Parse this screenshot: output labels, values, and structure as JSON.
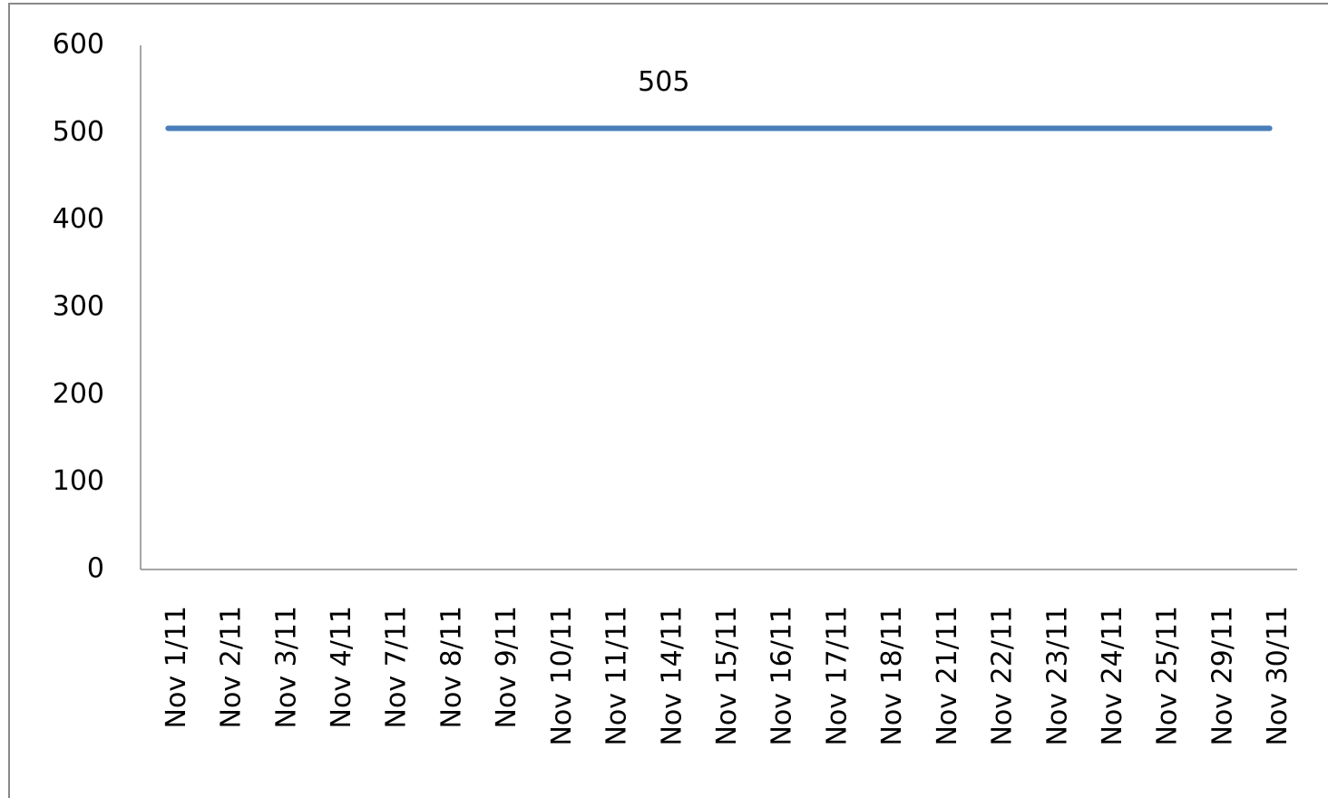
{
  "chart_data": {
    "type": "line",
    "categories": [
      "Nov 1/11",
      "Nov 2/11",
      "Nov 3/11",
      "Nov 4/11",
      "Nov 7/11",
      "Nov 8/11",
      "Nov 9/11",
      "Nov 10/11",
      "Nov 11/11",
      "Nov 14/11",
      "Nov 15/11",
      "Nov 16/11",
      "Nov 17/11",
      "Nov 18/11",
      "Nov 21/11",
      "Nov 22/11",
      "Nov 23/11",
      "Nov 24/11",
      "Nov 25/11",
      "Nov 29/11",
      "Nov 30/11"
    ],
    "series": [
      {
        "color": "#4a7ebb",
        "values": [
          505,
          505,
          505,
          505,
          505,
          505,
          505,
          505,
          505,
          505,
          505,
          505,
          505,
          505,
          505,
          505,
          505,
          505,
          505,
          505,
          505
        ],
        "value_labels": [
          null,
          null,
          null,
          null,
          null,
          null,
          null,
          null,
          null,
          "505",
          null,
          null,
          null,
          null,
          null,
          null,
          null,
          null,
          null,
          null,
          null
        ]
      }
    ],
    "ylim": [
      0,
      600
    ],
    "yticks": [
      0,
      100,
      200,
      300,
      400,
      500,
      600
    ],
    "grid": false
  }
}
